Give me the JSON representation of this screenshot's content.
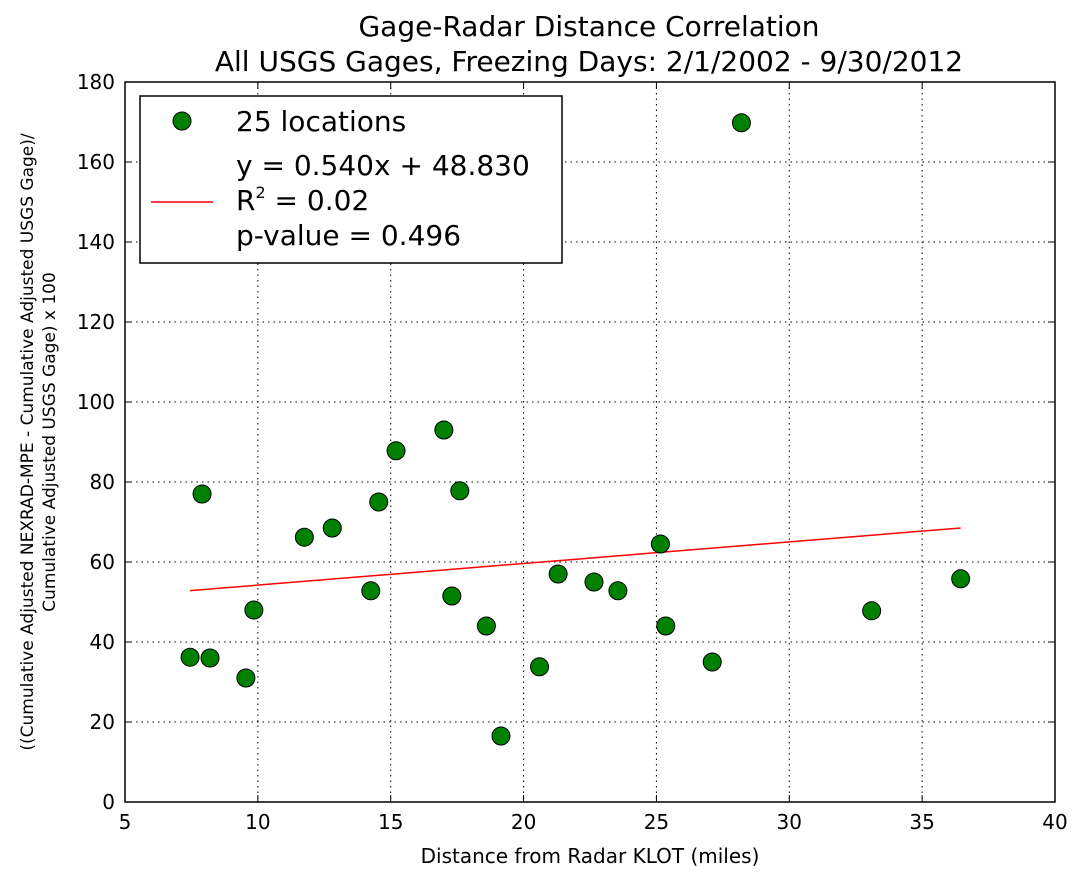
{
  "chart_data": {
    "type": "scatter",
    "title": [
      "Gage-Radar Distance Correlation",
      "All USGS Gages, Freezing Days: 2/1/2002 - 9/30/2012"
    ],
    "xlabel": "Distance from Radar KLOT (miles)",
    "ylabel": [
      "((Cumulative Adjusted NEXRAD-MPE - Cumulative Adjusted USGS Gage)/",
      "Cumulative Adjusted USGS Gage) x 100"
    ],
    "xlim": [
      5,
      40
    ],
    "ylim": [
      0,
      180
    ],
    "xticks": [
      5,
      10,
      15,
      20,
      25,
      30,
      35,
      40
    ],
    "yticks": [
      0,
      20,
      40,
      60,
      80,
      100,
      120,
      140,
      160,
      180
    ],
    "xtick_labels": [
      "5",
      "10",
      "15",
      "20",
      "25",
      "30",
      "35",
      "40"
    ],
    "ytick_labels": [
      "0",
      "20",
      "40",
      "60",
      "80",
      "100",
      "120",
      "140",
      "160",
      "180"
    ],
    "grid": true,
    "legend_position": "top-left",
    "series": [
      {
        "name": "25 locations",
        "type": "scatter",
        "color": "#008000",
        "x": [
          7.45,
          7.9,
          8.2,
          9.55,
          9.85,
          11.75,
          12.8,
          14.25,
          14.55,
          15.2,
          17.0,
          17.3,
          17.6,
          18.6,
          19.15,
          20.6,
          21.3,
          22.65,
          23.55,
          25.15,
          25.35,
          27.1,
          28.2,
          33.1,
          36.45
        ],
        "y": [
          36.2,
          77.0,
          36.0,
          31.0,
          48.0,
          66.2,
          68.5,
          52.8,
          75.0,
          87.8,
          93.0,
          51.5,
          77.8,
          44.0,
          16.5,
          33.8,
          57.0,
          55.0,
          52.8,
          64.5,
          44.0,
          35.0,
          169.8,
          47.8,
          55.8
        ]
      },
      {
        "name": "y = 0.540x + 48.830|R² = 0.02|p-value = 0.496",
        "type": "line",
        "color": "#ff0000",
        "x": [
          7.45,
          36.45
        ],
        "y": [
          52.85,
          68.51
        ]
      }
    ],
    "legend": {
      "scatter_label": "25 locations",
      "fit_lines": [
        "y = 0.540x + 48.830",
        "R",
        "2",
        " = 0.02",
        "p-value = 0.496"
      ]
    }
  }
}
